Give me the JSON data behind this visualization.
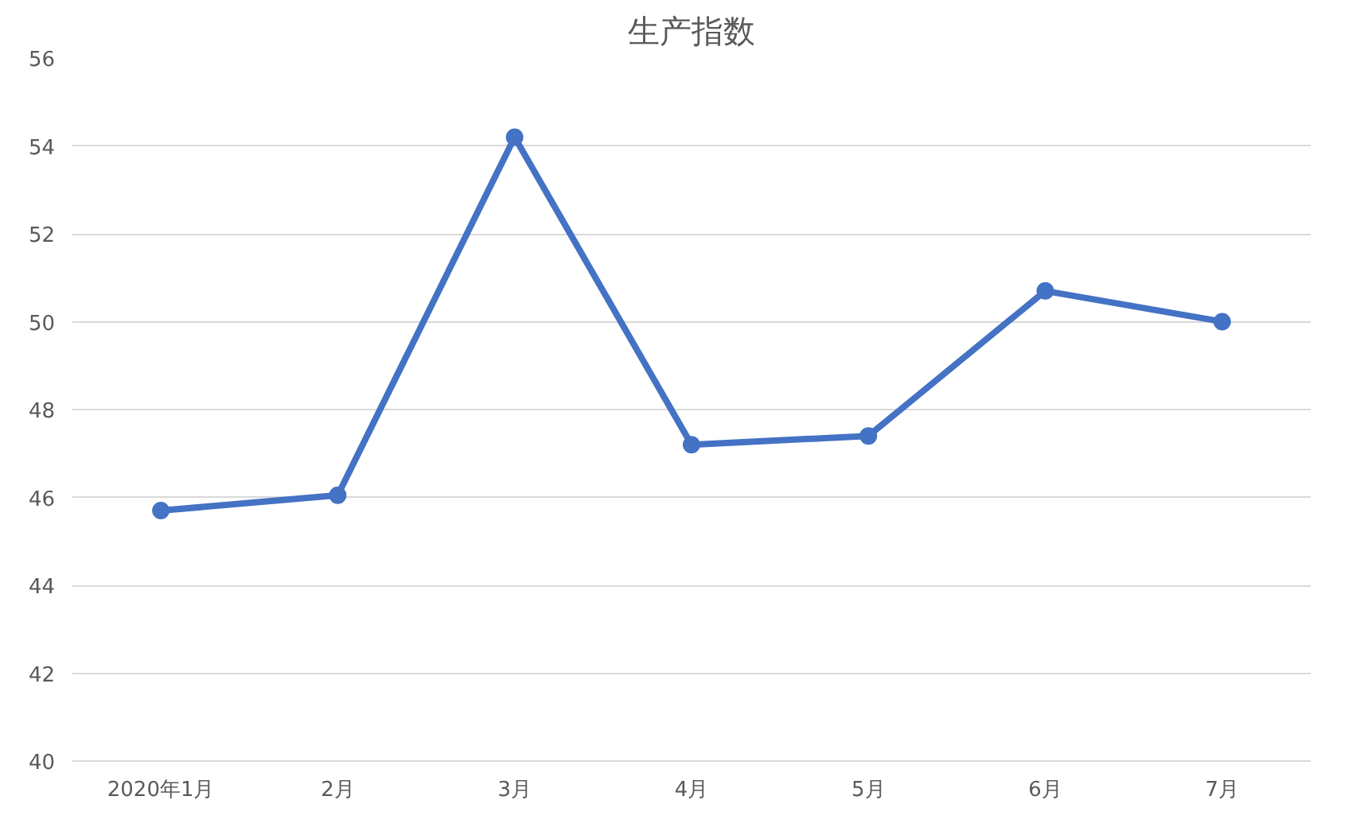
{
  "chart_data": {
    "type": "line",
    "title": "生产指数",
    "categories": [
      "2020年1月",
      "2月",
      "3月",
      "4月",
      "5月",
      "6月",
      "7月"
    ],
    "series": [
      {
        "color": "#4472c4",
        "values": [
          45.7,
          46.05,
          54.2,
          47.2,
          47.4,
          50.7,
          50.0
        ]
      }
    ],
    "ylim": [
      40,
      56
    ],
    "yticks": [
      40,
      42,
      44,
      46,
      48,
      50,
      52,
      54,
      56
    ],
    "grid": "y",
    "marker": "circle",
    "line_style": "solid"
  }
}
